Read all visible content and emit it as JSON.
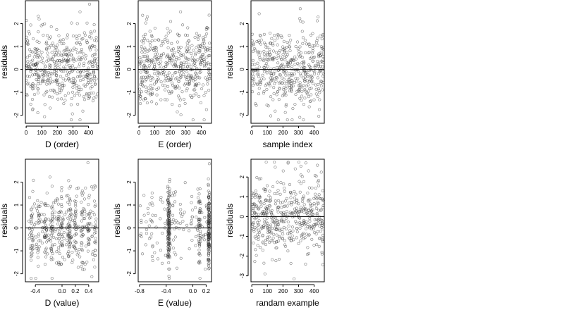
{
  "figure": {
    "background": "#ffffff",
    "point_color": "#333333"
  },
  "chart_data": [
    {
      "type": "scatter",
      "id": "p1",
      "xlabel": "D (order)",
      "ylabel": "residuals",
      "xlim": [
        -5,
        465
      ],
      "ylim": [
        -2.35,
        3.0
      ],
      "xticks": [
        0,
        100,
        200,
        300,
        400
      ],
      "xtick_labels": [
        "0",
        "100",
        "200",
        "300",
        "400"
      ],
      "yticks": [
        -2,
        -1,
        0,
        1,
        2
      ],
      "ytick_labels": [
        "-2",
        "-1",
        "0",
        "1",
        "2"
      ],
      "hline": 0,
      "n_points": 460,
      "x_distribution": "uniform-index",
      "x_range": [
        0,
        460
      ],
      "y_mean": 0.05,
      "y_sd": 0.85,
      "seed": 11,
      "series": [
        {
          "x": [],
          "y": []
        }
      ]
    },
    {
      "type": "scatter",
      "id": "p2",
      "xlabel": "E (order)",
      "ylabel": "residuals",
      "xlim": [
        -5,
        465
      ],
      "ylim": [
        -2.35,
        3.0
      ],
      "xticks": [
        0,
        100,
        200,
        300,
        400
      ],
      "xtick_labels": [
        "0",
        "100",
        "200",
        "300",
        "400"
      ],
      "yticks": [
        -2,
        -1,
        0,
        1,
        2
      ],
      "ytick_labels": [
        "-2",
        "-1",
        "0",
        "1",
        "2"
      ],
      "hline": 0,
      "n_points": 460,
      "x_distribution": "uniform-index",
      "x_range": [
        0,
        460
      ],
      "y_mean": 0.05,
      "y_sd": 0.85,
      "seed": 23,
      "series": [
        {
          "x": [],
          "y": []
        }
      ]
    },
    {
      "type": "scatter",
      "id": "p3",
      "xlabel": "sample index",
      "ylabel": "residuals",
      "xlim": [
        -5,
        465
      ],
      "ylim": [
        -2.35,
        3.0
      ],
      "xticks": [
        0,
        100,
        200,
        300,
        400
      ],
      "xtick_labels": [
        "0",
        "100",
        "200",
        "300",
        "400"
      ],
      "yticks": [
        -2,
        -1,
        0,
        1,
        2
      ],
      "ytick_labels": [
        "-2",
        "-1",
        "0",
        "1",
        "2"
      ],
      "hline": 0,
      "n_points": 460,
      "x_distribution": "uniform-index",
      "x_range": [
        0,
        460
      ],
      "y_mean": 0.05,
      "y_sd": 0.85,
      "seed": 37,
      "series": [
        {
          "x": [],
          "y": []
        }
      ]
    },
    {
      "type": "scatter",
      "id": "p4",
      "xlabel": "D (value)",
      "ylabel": "residuals",
      "xlim": [
        -0.55,
        0.55
      ],
      "ylim": [
        -2.35,
        3.0
      ],
      "xticks": [
        -0.4,
        0.0,
        0.2,
        0.4
      ],
      "xtick_labels": [
        "-0.4",
        "0.0",
        "0.2",
        "0.4"
      ],
      "yticks": [
        -2,
        -1,
        0,
        1,
        2
      ],
      "ytick_labels": [
        "-2",
        "-1",
        "0",
        "1",
        "2"
      ],
      "hline": 0,
      "n_points": 460,
      "x_distribution": "clustered",
      "x_clusters": [
        -0.45,
        -0.35,
        -0.25,
        -0.15,
        -0.05,
        0.0,
        0.1,
        0.12,
        0.2,
        0.3,
        0.4,
        0.5
      ],
      "y_mean": 0.05,
      "y_sd": 0.85,
      "seed": 41,
      "series": [
        {
          "x": [],
          "y": []
        }
      ]
    },
    {
      "type": "scatter",
      "id": "p5",
      "xlabel": "E (value)",
      "ylabel": "residuals",
      "xlim": [
        -0.82,
        0.28
      ],
      "ylim": [
        -2.35,
        3.0
      ],
      "xticks": [
        -0.8,
        -0.4,
        0.0,
        0.2
      ],
      "xtick_labels": [
        "-0.8",
        "-0.4",
        "0.0",
        "0.2"
      ],
      "yticks": [
        -2,
        -1,
        0,
        1,
        2
      ],
      "ytick_labels": [
        "-2",
        "-1",
        "0",
        "1",
        "2"
      ],
      "hline": 0,
      "n_points": 460,
      "x_distribution": "clustered-heavy",
      "x_clusters": [
        -0.36,
        0.1,
        0.22,
        0.25
      ],
      "x_background_range": [
        -0.8,
        0.25
      ],
      "y_mean": 0.05,
      "y_sd": 0.85,
      "seed": 53,
      "series": [
        {
          "x": [],
          "y": []
        }
      ]
    },
    {
      "type": "scatter",
      "id": "p6",
      "xlabel": "randam example",
      "ylabel": "residuals",
      "xlim": [
        -5,
        465
      ],
      "ylim": [
        -3.3,
        2.9
      ],
      "xticks": [
        0,
        100,
        200,
        300,
        400
      ],
      "xtick_labels": [
        "0",
        "100",
        "200",
        "300",
        "400"
      ],
      "yticks": [
        -3,
        -2,
        -1,
        0,
        1,
        2
      ],
      "ytick_labels": [
        "-3",
        "-2",
        "-1",
        "0",
        "1",
        "2"
      ],
      "hline": 0,
      "n_points": 460,
      "x_distribution": "uniform-index",
      "x_range": [
        0,
        460
      ],
      "y_mean": 0.0,
      "y_sd": 1.0,
      "seed": 67,
      "series": [
        {
          "x": [],
          "y": []
        }
      ]
    }
  ]
}
